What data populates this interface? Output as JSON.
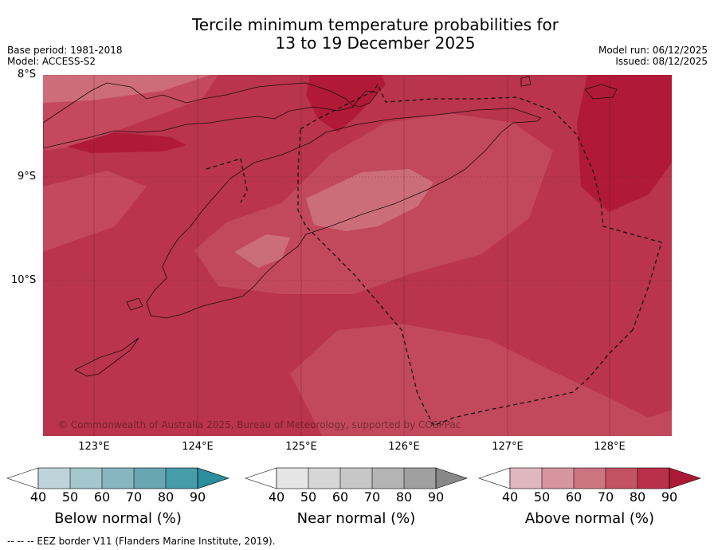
{
  "title": {
    "line1": "Tercile minimum temperature probabilities for",
    "line2": "13 to 19 December 2025"
  },
  "meta": {
    "base_period": "Base period: 1981-2018",
    "model": "Model: ACCESS-S2",
    "model_run": "Model run: 06/12/2025",
    "issued": "Issued: 08/12/2025"
  },
  "map": {
    "latitude_labels": [
      "8°S",
      "9°S",
      "10°S"
    ],
    "longitude_labels": [
      "123°E",
      "124°E",
      "125°E",
      "126°E",
      "127°E",
      "128°E"
    ],
    "copyright": "© Commonwealth of Australia 2025, Bureau of Meteorology, supported by COSPPac",
    "colors": {
      "p70_80": "#c2485c",
      "p80_90": "#b9304a",
      "p90": "#b01a38",
      "p60_70": "#cc6e7a"
    }
  },
  "colorbars": [
    {
      "label": "Below normal (%)",
      "ticks": [
        "40",
        "50",
        "60",
        "70",
        "80",
        "90"
      ],
      "colors": [
        "#bfd4da",
        "#a4c6cd",
        "#87b6c0",
        "#68a6b3",
        "#479ca9",
        "#2c8e9c"
      ]
    },
    {
      "label": "Near normal (%)",
      "ticks": [
        "40",
        "50",
        "60",
        "70",
        "80",
        "90"
      ],
      "colors": [
        "#e5e5e5",
        "#d6d6d6",
        "#c7c7c7",
        "#b4b4b4",
        "#a0a0a0",
        "#888888"
      ]
    },
    {
      "label": "Above normal (%)",
      "ticks": [
        "40",
        "50",
        "60",
        "70",
        "80",
        "90"
      ],
      "colors": [
        "#e0b7be",
        "#d6959f",
        "#cc7580",
        "#c35263",
        "#b9304a",
        "#ac1835"
      ]
    }
  ],
  "footer": "--  --  -- EEZ border V11 (Flanders Marine Institute, 2019)."
}
